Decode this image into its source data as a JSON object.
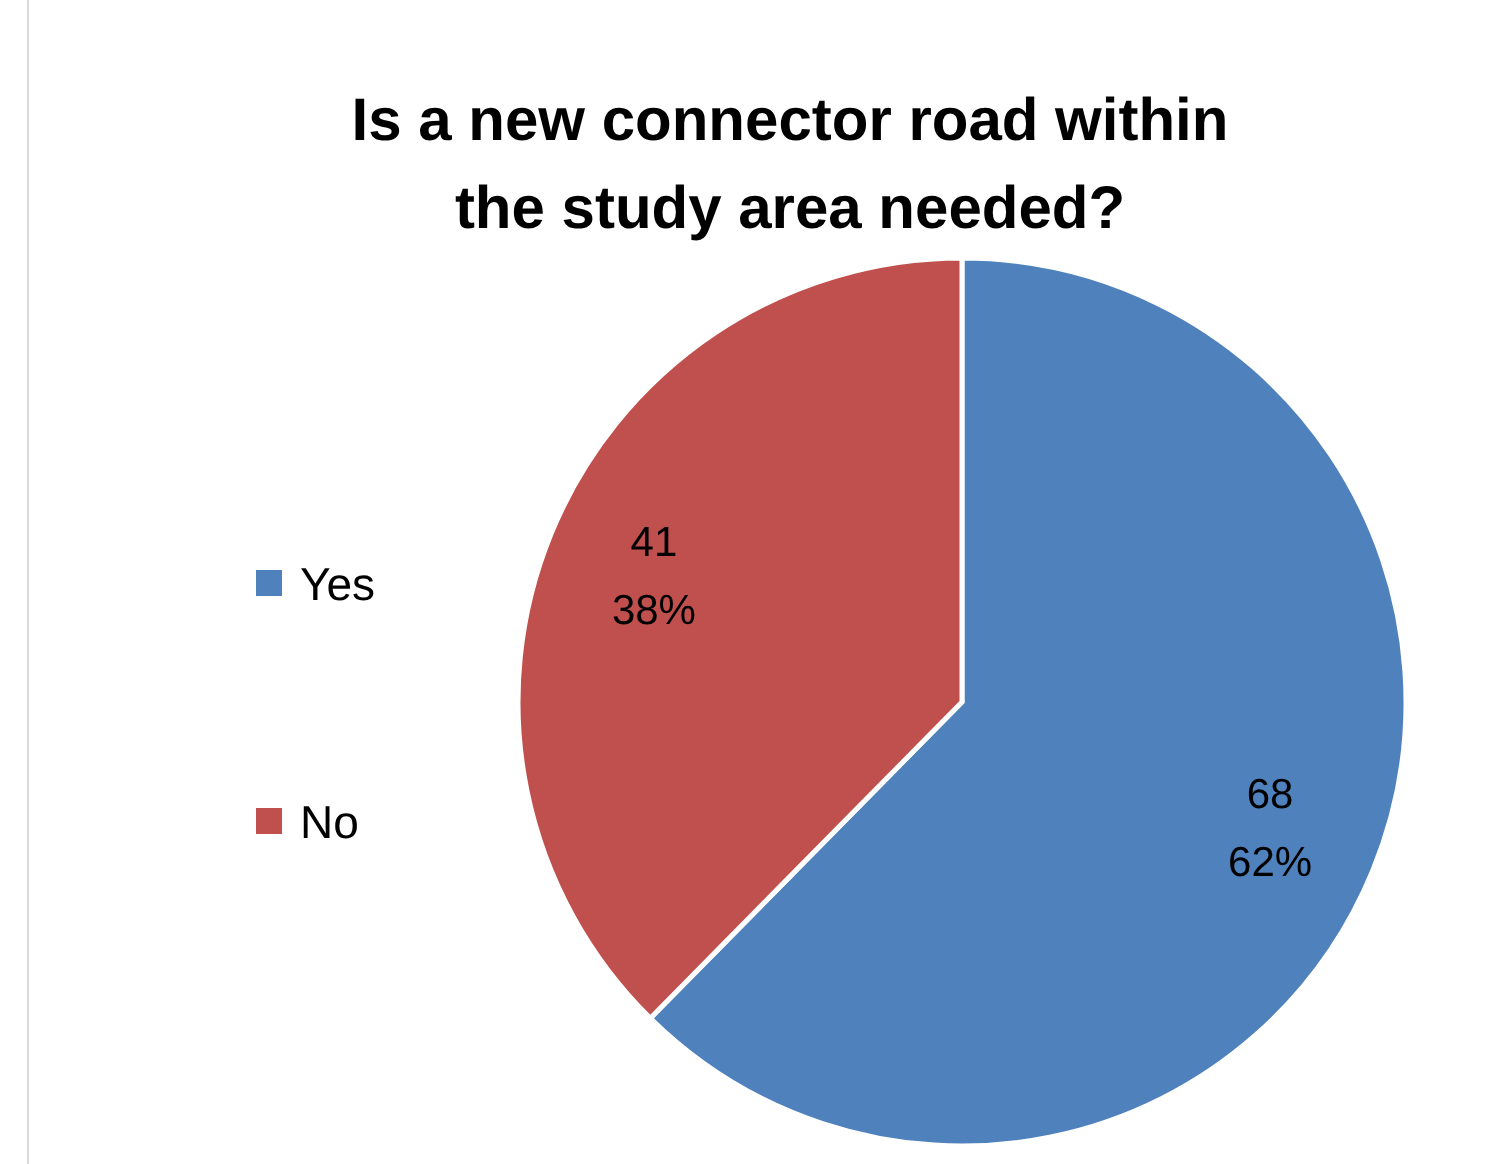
{
  "chart_data": {
    "type": "pie",
    "title": "Is a new connector road within the study area needed?",
    "categories": [
      "Yes",
      "No"
    ],
    "values": [
      68,
      41
    ],
    "colors": [
      "#4f81bd",
      "#c0504d"
    ],
    "value_labels": [
      "68\n62%",
      "41\n38%"
    ],
    "legend": "left"
  }
}
